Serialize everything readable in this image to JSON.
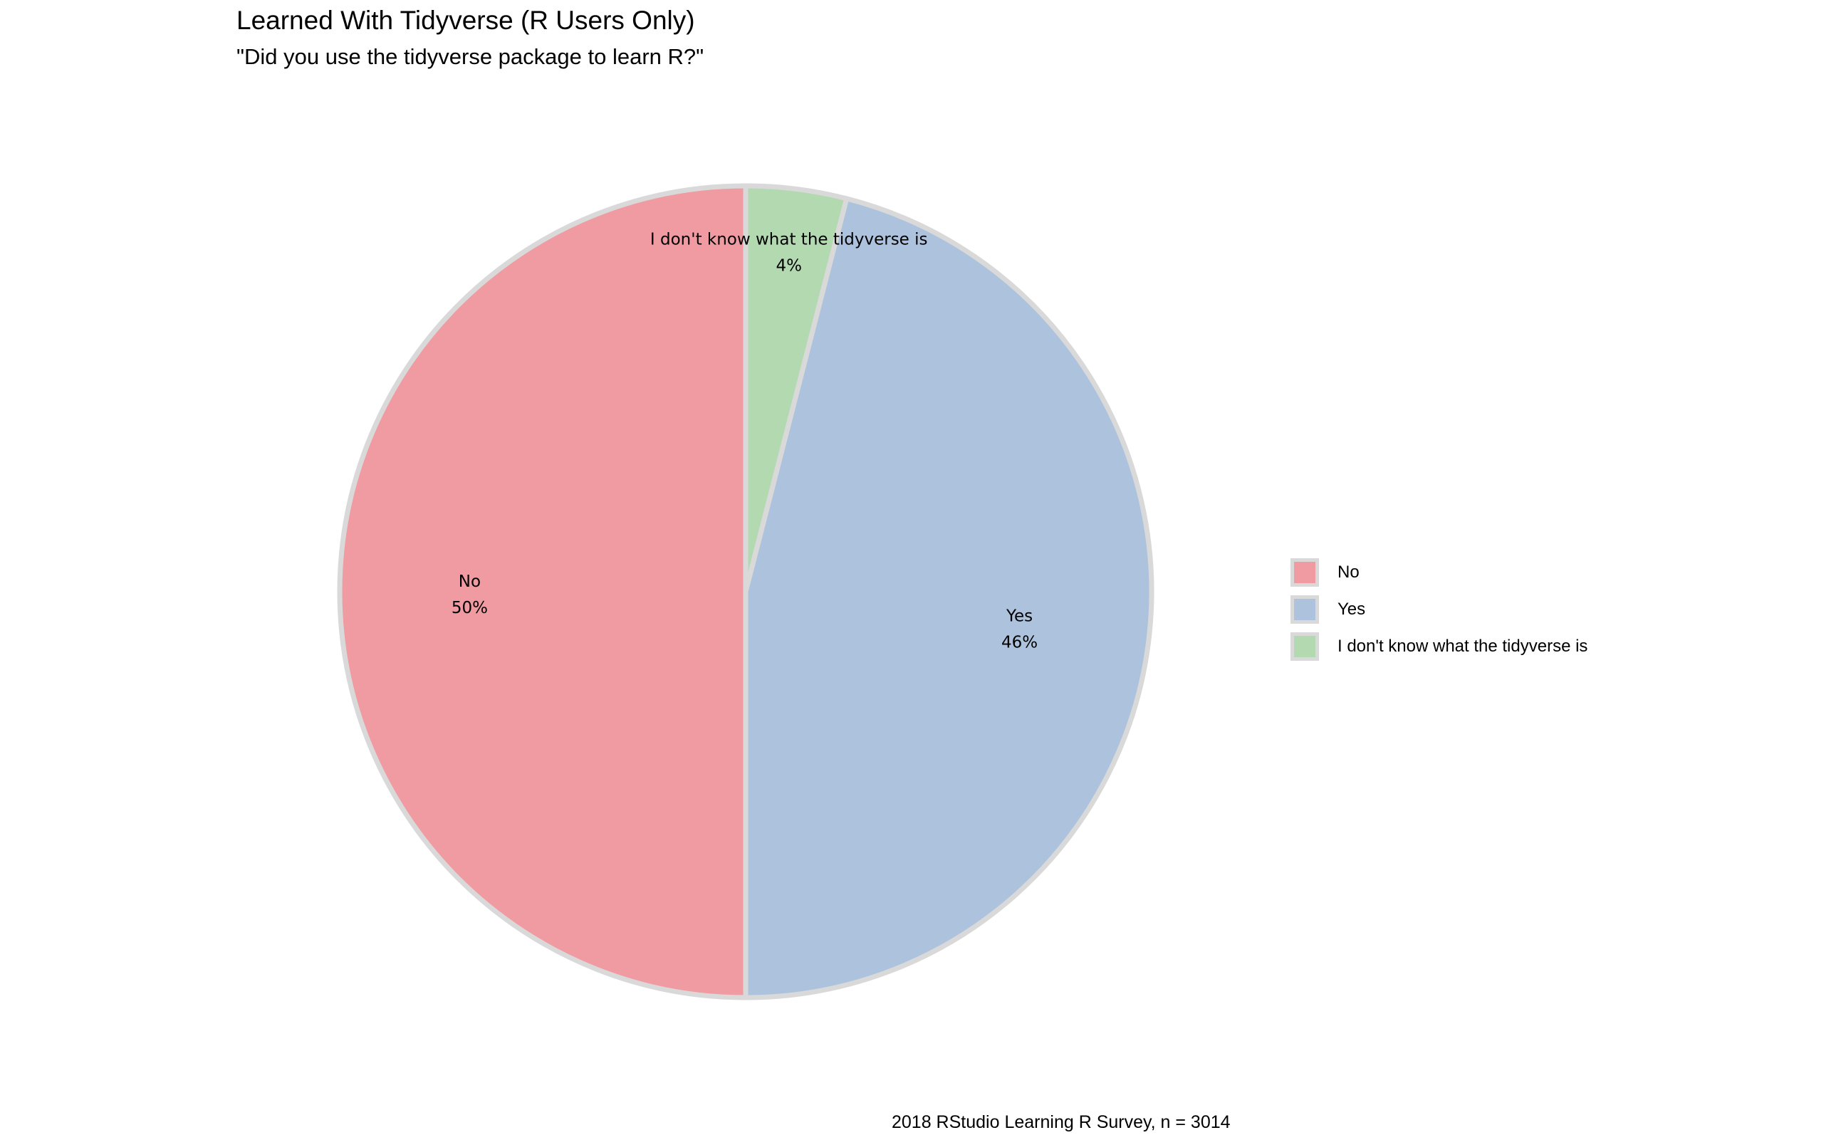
{
  "chart_data": {
    "type": "pie",
    "title": "Learned With Tidyverse (R Users Only)",
    "subtitle": "\"Did you use the tidyverse package to learn R?\"",
    "caption": "2018 RStudio Learning R Survey, n = 3014",
    "slice_border_color": "#d9d9d9",
    "slices": [
      {
        "label": "I don't know what the tidyverse is",
        "value": 4,
        "value_label": "4%",
        "color": "#b3d9b1"
      },
      {
        "label": "Yes",
        "value": 46,
        "value_label": "46%",
        "color": "#adc3dd"
      },
      {
        "label": "No",
        "value": 50,
        "value_label": "50%",
        "color": "#f09aa1"
      }
    ],
    "legend": {
      "placement": "right",
      "entries": [
        {
          "label": "No",
          "color": "#f09aa1"
        },
        {
          "label": "Yes",
          "color": "#adc3dd"
        },
        {
          "label": "I don't know what the tidyverse is",
          "color": "#b3d9b1"
        }
      ]
    }
  }
}
